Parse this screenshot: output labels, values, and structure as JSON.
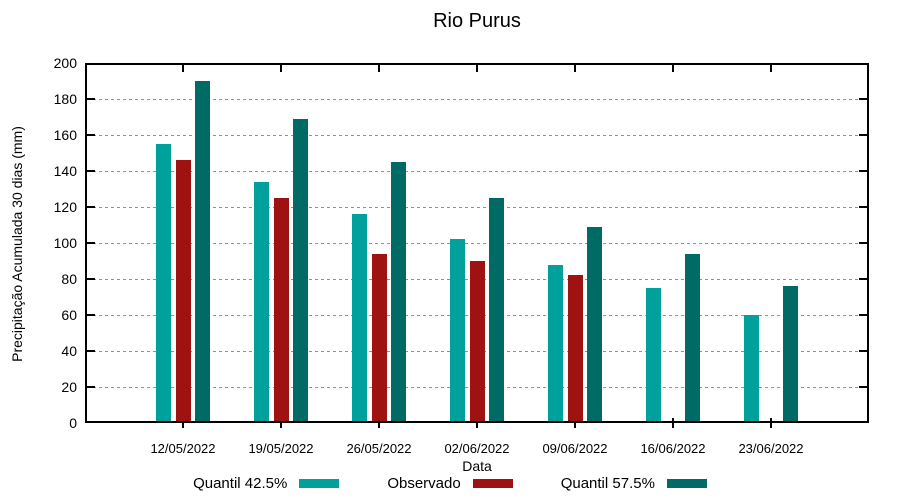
{
  "title": "Rio Purus",
  "chart_data": {
    "type": "bar",
    "title": "Rio Purus",
    "xlabel": "Data",
    "ylabel": "Precipitação Acumulada 30 dias (mm)",
    "categories": [
      "12/05/2022",
      "19/05/2022",
      "26/05/2022",
      "02/06/2022",
      "09/06/2022",
      "16/06/2022",
      "23/06/2022"
    ],
    "series": [
      {
        "name": "Quantil 42.5%",
        "color": "#00A09C",
        "values": [
          155,
          134,
          116,
          102,
          88,
          75,
          60
        ]
      },
      {
        "name": "Observado",
        "color": "#9E1212",
        "values": [
          146,
          125,
          94,
          90,
          82,
          null,
          null
        ]
      },
      {
        "name": "Quantil 57.5%",
        "color": "#006A64",
        "values": [
          190,
          169,
          145,
          125,
          109,
          94,
          76
        ]
      }
    ],
    "ylim": [
      0,
      200
    ],
    "y_tick_step": 20,
    "grid": true,
    "grid_style": "dashed",
    "legend_position": "bottom"
  }
}
